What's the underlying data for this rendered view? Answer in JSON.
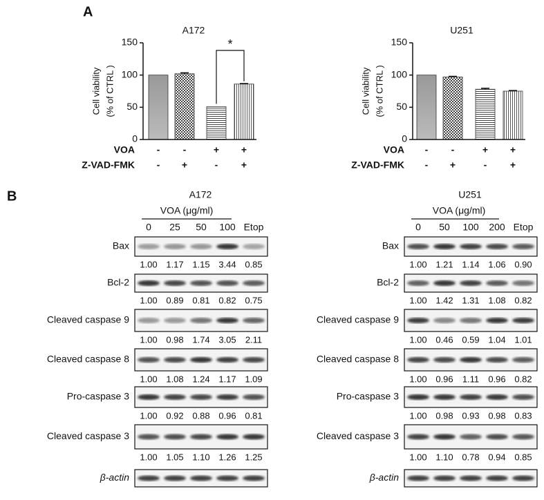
{
  "panel_labels": [
    "A",
    "B"
  ],
  "chart_data": [
    {
      "type": "bar",
      "title": "A172",
      "ylabel": [
        "Cell viability",
        "(% of CTRL )"
      ],
      "values": [
        100,
        102,
        51,
        86
      ],
      "errors": [
        0,
        1.5,
        0,
        0.8
      ],
      "ylim": [
        0,
        150
      ],
      "yticks": [
        0,
        50,
        100,
        150
      ],
      "treatments": [
        {
          "name": "VOA",
          "signs": [
            "-",
            "-",
            "+",
            "+"
          ]
        },
        {
          "name": "Z-VAD-FMK",
          "signs": [
            "-",
            "+",
            "-",
            "+"
          ]
        }
      ],
      "annotation": "*"
    },
    {
      "type": "bar",
      "title": "U251",
      "ylabel": [
        "Cell viability",
        "(% of CTRL )"
      ],
      "values": [
        100,
        97,
        78,
        75
      ],
      "errors": [
        0,
        1,
        1.5,
        1
      ],
      "ylim": [
        0,
        150
      ],
      "yticks": [
        0,
        50,
        100,
        150
      ],
      "treatments": [
        {
          "name": "VOA",
          "signs": [
            "-",
            "-",
            "+",
            "+"
          ]
        },
        {
          "name": "Z-VAD-FMK",
          "signs": [
            "-",
            "+",
            "-",
            "+"
          ]
        }
      ]
    }
  ],
  "blots": [
    {
      "title": "A172",
      "treatment": "VOA (μg/ml)",
      "lanes": [
        "0",
        "25",
        "50",
        "100",
        "Etop"
      ],
      "rows": [
        {
          "label": "Bax",
          "values": [
            1.0,
            1.17,
            1.15,
            3.44,
            0.85
          ],
          "value_labels": [
            "1.00",
            "1.17",
            "1.15",
            "3.44",
            "0.85"
          ]
        },
        {
          "label": "Bcl-2",
          "values": [
            1.0,
            0.89,
            0.81,
            0.82,
            0.75
          ],
          "value_labels": [
            "1.00",
            "0.89",
            "0.81",
            "0.82",
            "0.75"
          ]
        },
        {
          "label": "Cleaved caspase 9",
          "values": [
            1.0,
            0.98,
            1.74,
            3.05,
            2.11
          ],
          "value_labels": [
            "1.00",
            "0.98",
            "1.74",
            "3.05",
            "2.11"
          ]
        },
        {
          "label": "Cleaved caspase 8",
          "values": [
            1.0,
            1.08,
            1.24,
            1.17,
            1.09
          ],
          "value_labels": [
            "1.00",
            "1.08",
            "1.24",
            "1.17",
            "1.09"
          ]
        },
        {
          "label": "Pro-caspase 3",
          "values": [
            1.0,
            0.92,
            0.88,
            0.96,
            0.81
          ],
          "value_labels": [
            "1.00",
            "0.92",
            "0.88",
            "0.96",
            "0.81"
          ]
        },
        {
          "label": "Cleaved caspase 3",
          "values": [
            1.0,
            1.05,
            1.1,
            1.26,
            1.25
          ],
          "value_labels": [
            "1.00",
            "1.05",
            "1.10",
            "1.26",
            "1.25"
          ]
        },
        {
          "label": "β-actin"
        }
      ]
    },
    {
      "title": "U251",
      "treatment": "VOA (μg/ml)",
      "lanes": [
        "0",
        "50",
        "100",
        "200",
        "Etop"
      ],
      "rows": [
        {
          "label": "Bax",
          "values": [
            1.0,
            1.21,
            1.14,
            1.06,
            0.9
          ],
          "value_labels": [
            "1.00",
            "1.21",
            "1.14",
            "1.06",
            "0.90"
          ]
        },
        {
          "label": "Bcl-2",
          "values": [
            1.0,
            1.42,
            1.31,
            1.08,
            0.82
          ],
          "value_labels": [
            "1.00",
            "1.42",
            "1.31",
            "1.08",
            "0.82"
          ]
        },
        {
          "label": "Cleaved caspase 9",
          "values": [
            1.0,
            0.46,
            0.59,
            1.04,
            1.01
          ],
          "value_labels": [
            "1.00",
            "0.46",
            "0.59",
            "1.04",
            "1.01"
          ]
        },
        {
          "label": "Cleaved caspase 8",
          "values": [
            1.0,
            0.96,
            1.11,
            0.96,
            0.82
          ],
          "value_labels": [
            "1.00",
            "0.96",
            "1.11",
            "0.96",
            "0.82"
          ]
        },
        {
          "label": "Pro-caspase 3",
          "values": [
            1.0,
            0.98,
            0.93,
            0.98,
            0.83
          ],
          "value_labels": [
            "1.00",
            "0.98",
            "0.93",
            "0.98",
            "0.83"
          ]
        },
        {
          "label": "Cleaved caspase 3",
          "values": [
            1.0,
            1.1,
            0.78,
            0.94,
            0.85
          ],
          "value_labels": [
            "1.00",
            "1.10",
            "0.78",
            "0.94",
            "0.85"
          ]
        },
        {
          "label": "β-actin"
        }
      ]
    }
  ]
}
